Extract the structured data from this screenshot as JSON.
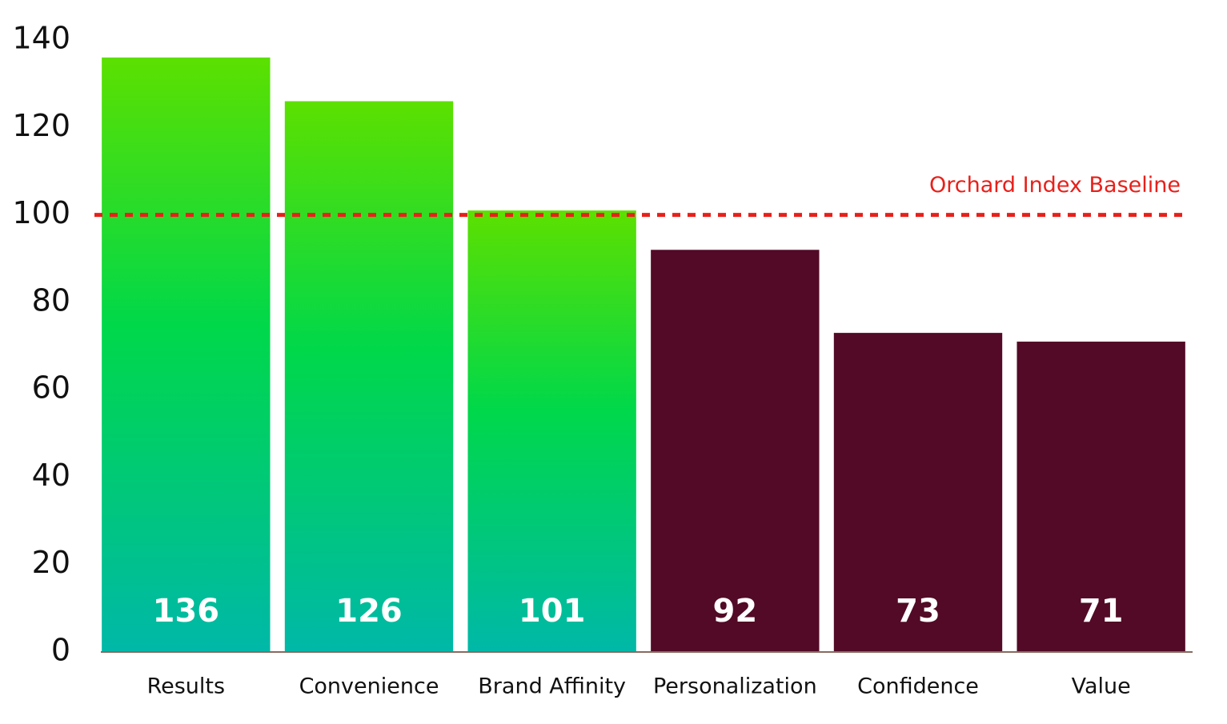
{
  "chart_data": {
    "type": "bar",
    "categories": [
      "Results",
      "Convenience",
      "Brand Affinity",
      "Personalization",
      "Confidence",
      "Value"
    ],
    "values": [
      136,
      126,
      101,
      92,
      73,
      71
    ],
    "colors": [
      [
        "#5ce000",
        "#00d84a",
        "#00b8a8"
      ],
      [
        "#5ce000",
        "#00d84a",
        "#00b8a8"
      ],
      [
        "#5ce000",
        "#00d84a",
        "#00b8a8"
      ],
      "#520a26",
      "#520a26",
      "#520a26"
    ],
    "ylim": [
      0,
      140
    ],
    "yticks": [
      0,
      20,
      40,
      60,
      80,
      100,
      120,
      140
    ],
    "grid": false,
    "reference_line": {
      "value": 100,
      "label": "Orchard Index Baseline",
      "color": "#e8201a"
    }
  }
}
